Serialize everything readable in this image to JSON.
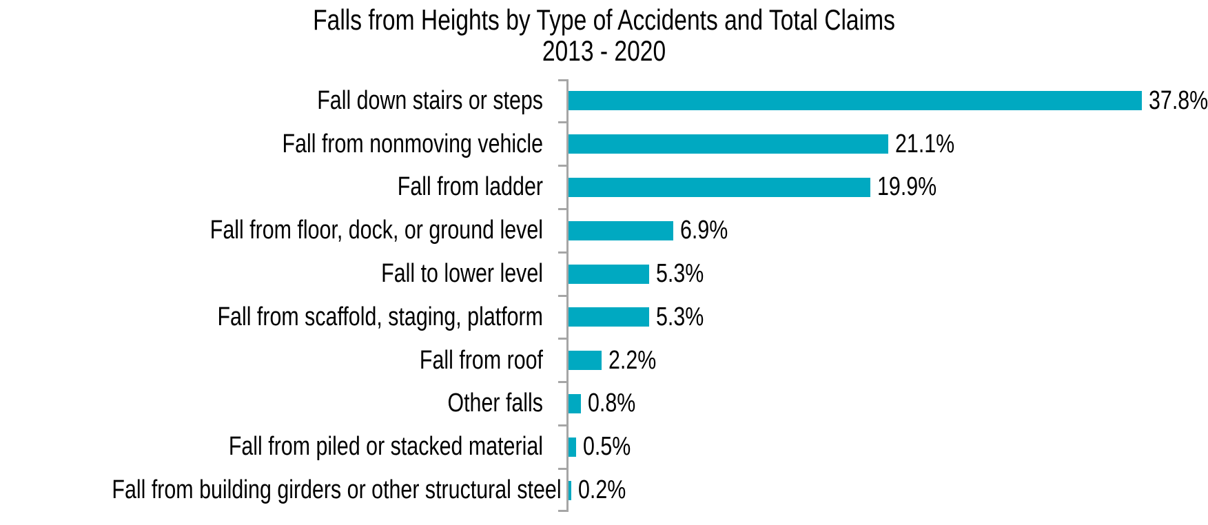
{
  "title": {
    "line1": "Falls from Heights by Type of Accidents and Total Claims",
    "line2": "2013 - 2020"
  },
  "chart_data": {
    "type": "bar",
    "orientation": "horizontal",
    "title": "Falls from Heights by Type of Accidents and Total Claims 2013 - 2020",
    "categories": [
      "Fall down stairs or steps",
      "Fall from nonmoving vehicle",
      "Fall from ladder",
      "Fall from floor, dock, or ground level",
      "Fall to lower level",
      "Fall from scaffold, staging, platform",
      "Fall from roof",
      "Other falls",
      "Fall from piled or stacked material",
      "Fall from building girders or other structural steel"
    ],
    "values": [
      37.8,
      21.1,
      19.9,
      6.9,
      5.3,
      5.3,
      2.2,
      0.8,
      0.5,
      0.2
    ],
    "value_labels": [
      "37.8%",
      "21.1%",
      "19.9%",
      "6.9%",
      "5.3%",
      "5.3%",
      "2.2%",
      "0.8%",
      "0.5%",
      "0.2%"
    ],
    "unit": "%",
    "xlabel": "",
    "ylabel": "",
    "xlim": [
      0,
      40
    ],
    "grid": false,
    "legend": "none",
    "data_labels": "outside-end",
    "bar_color": "#00A9C1",
    "axis_color": "#A6A6A6",
    "text_color": "#000000",
    "background_color": "#FFFFFF"
  }
}
